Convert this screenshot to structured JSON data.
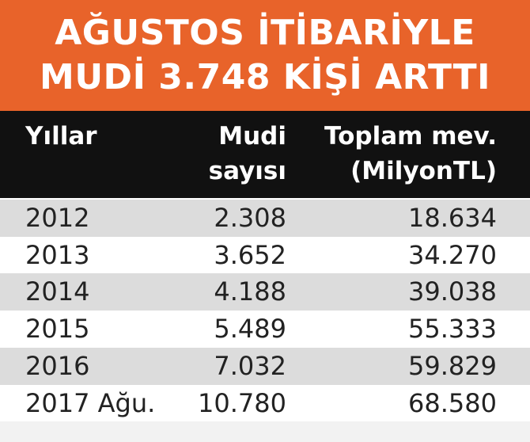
{
  "header": {
    "title": [
      "AĞUSTOS İTİBARİYLE",
      "MUDİ 3.748 KİŞİ ARTTI"
    ]
  },
  "table": {
    "columns": [
      [
        "Yıllar"
      ],
      [
        "Mudi",
        "sayısı"
      ],
      [
        "Toplam mev.",
        "(MilyonTL)"
      ]
    ],
    "rows": [
      [
        "2012",
        "2.308",
        "18.634"
      ],
      [
        "2013",
        "3.652",
        "34.270"
      ],
      [
        "2014",
        "4.188",
        "39.038"
      ],
      [
        "2015",
        "5.489",
        "55.333"
      ],
      [
        "2016",
        "7.032",
        "59.829"
      ],
      [
        "2017 Ağu.",
        "10.780",
        "68.580"
      ]
    ]
  }
}
